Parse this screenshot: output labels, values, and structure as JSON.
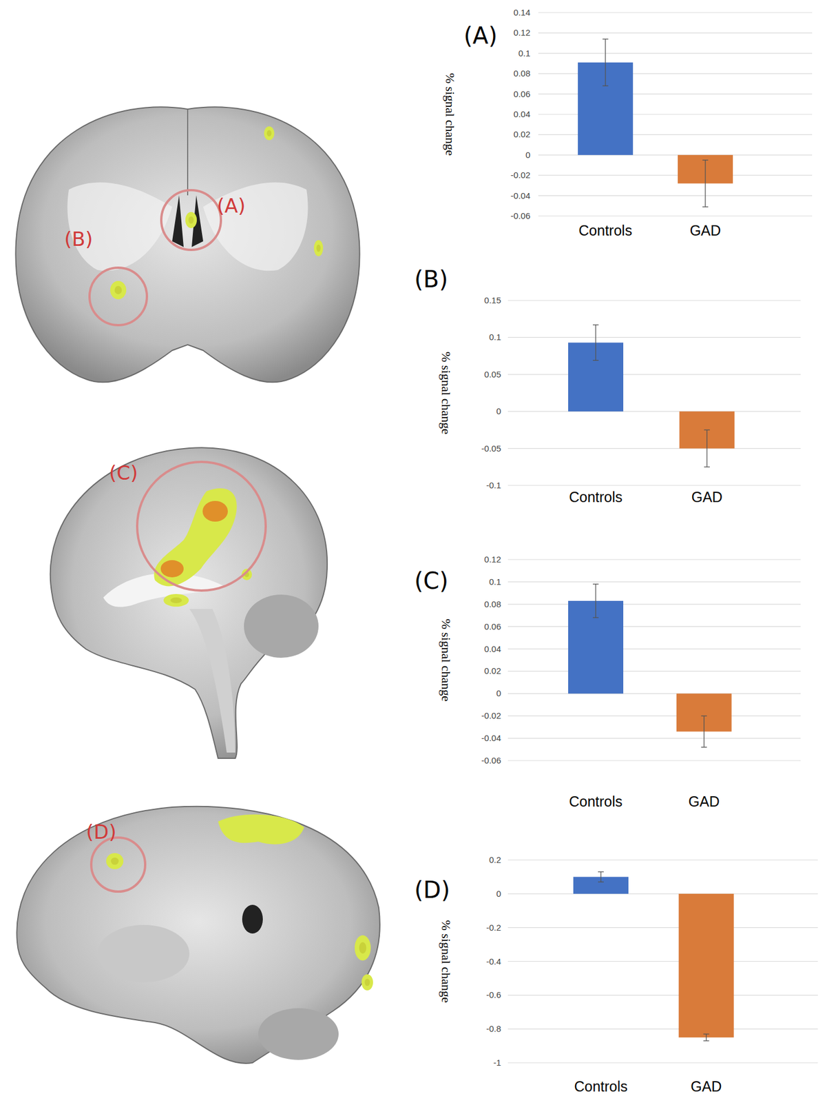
{
  "figure": {
    "brain_labels": [
      "(A)",
      "(B)",
      "(C)",
      "(D)"
    ]
  },
  "chart_data": [
    {
      "type": "bar",
      "title": "(A)",
      "y_label": "% signal change",
      "categories": [
        "Controls",
        "GAD"
      ],
      "values": [
        0.091,
        -0.028
      ],
      "errors": [
        0.023,
        0.023
      ],
      "colors": [
        "#4472c4",
        "#d97b3a"
      ],
      "ylim": [
        -0.06,
        0.14
      ],
      "yticks": [
        -0.06,
        -0.04,
        -0.02,
        0,
        0.02,
        0.04,
        0.06,
        0.08,
        0.1,
        0.12,
        0.14
      ],
      "grid": true
    },
    {
      "type": "bar",
      "title": "(B)",
      "y_label": "% signal change",
      "categories": [
        "Controls",
        "GAD"
      ],
      "values": [
        0.093,
        -0.05
      ],
      "errors": [
        0.024,
        0.025
      ],
      "colors": [
        "#4472c4",
        "#d97b3a"
      ],
      "ylim": [
        -0.1,
        0.15
      ],
      "yticks": [
        -0.1,
        -0.05,
        0,
        0.05,
        0.1,
        0.15
      ],
      "grid": true
    },
    {
      "type": "bar",
      "title": "(C)",
      "y_label": "% signal change",
      "categories": [
        "Controls",
        "GAD"
      ],
      "values": [
        0.083,
        -0.034
      ],
      "errors": [
        0.015,
        0.014
      ],
      "colors": [
        "#4472c4",
        "#d97b3a"
      ],
      "ylim": [
        -0.06,
        0.12
      ],
      "yticks": [
        -0.06,
        -0.04,
        -0.02,
        0,
        0.02,
        0.04,
        0.06,
        0.08,
        0.1,
        0.12
      ],
      "grid": true
    },
    {
      "type": "bar",
      "title": "(D)",
      "y_label": "% signal change",
      "categories": [
        "Controls",
        "GAD"
      ],
      "values": [
        0.1,
        -0.85
      ],
      "errors": [
        0.03,
        0.02
      ],
      "colors": [
        "#4472c4",
        "#d97b3a"
      ],
      "ylim": [
        -1,
        0.2
      ],
      "yticks": [
        -1,
        -0.8,
        -0.6,
        -0.4,
        -0.2,
        0,
        0.2
      ],
      "grid": true
    }
  ]
}
